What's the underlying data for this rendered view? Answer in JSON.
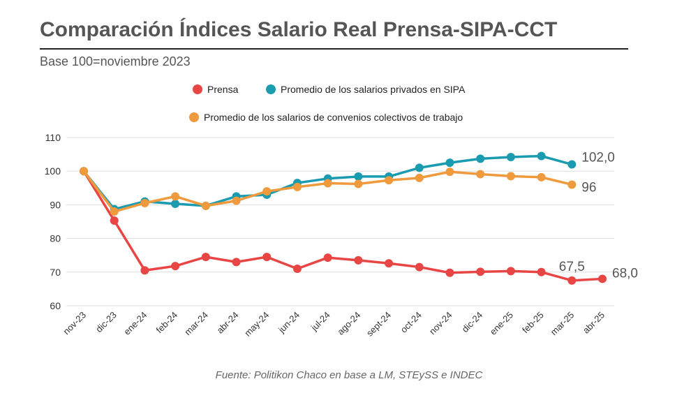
{
  "title": "Comparación Índices Salario Real Prensa-SIPA-CCT",
  "subtitle": "Base 100=noviembre 2023",
  "source": "Fuente: Politikon Chaco en base a LM, STEySS e INDEC",
  "chart_data": {
    "type": "line",
    "categories": [
      "nov-23",
      "dic-23",
      "ene-24",
      "feb-24",
      "mar-24",
      "abr-24",
      "may-24",
      "jun-24",
      "jul-24",
      "ago-24",
      "sept-24",
      "oct-24",
      "nov-24",
      "dic-24",
      "ene-25",
      "feb-25",
      "mar-25",
      "abr-25"
    ],
    "ylim": [
      60,
      110
    ],
    "yticks": [
      60,
      70,
      80,
      90,
      100,
      110
    ],
    "grid": true,
    "legend_placement": "top",
    "series": [
      {
        "name": "Prensa",
        "color": "#e84545",
        "values": [
          100,
          85.3,
          70.5,
          71.8,
          74.5,
          73,
          74.5,
          71,
          74.3,
          73.5,
          72.6,
          71.5,
          69.8,
          70.1,
          70.3,
          70,
          67.5,
          68.0
        ],
        "labels": [
          {
            "index": 16,
            "text": "67,5"
          },
          {
            "index": 17,
            "text": "68,0"
          }
        ]
      },
      {
        "name": "Promedio de los salarios privados en SIPA",
        "color": "#1a9bb0",
        "values": [
          100,
          88.7,
          91,
          90.3,
          89.7,
          92.5,
          93,
          96.5,
          97.8,
          98.4,
          98.4,
          101,
          102.5,
          103.7,
          104.2,
          104.5,
          102.0,
          null
        ],
        "labels": [
          {
            "index": 16,
            "text": "102,0"
          }
        ]
      },
      {
        "name": "Promedio de los salarios de convenios colectivos de trabajo",
        "color": "#f09a3e",
        "values": [
          100,
          88,
          90.5,
          92.5,
          89.7,
          91.2,
          94,
          95.3,
          96.4,
          96.2,
          97.3,
          98,
          99.8,
          99.1,
          98.5,
          98.2,
          96,
          null
        ],
        "labels": [
          {
            "index": 16,
            "text": "96"
          }
        ]
      }
    ]
  }
}
